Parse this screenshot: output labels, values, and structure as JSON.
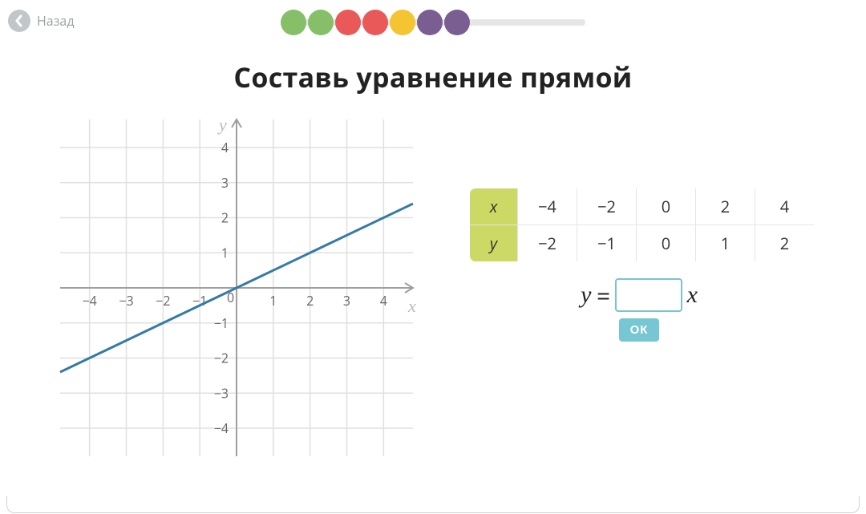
{
  "header": {
    "back_label": "Назад",
    "back_circle_color": "#c1c7c8",
    "progress_dots": [
      "#86bf68",
      "#86bf68",
      "#ea5959",
      "#ea5959",
      "#f4c431",
      "#7a5e91",
      "#7a5e91"
    ]
  },
  "title": "Составь уравнение прямой",
  "chart": {
    "type": "line",
    "x_range": [
      -4.8,
      4.8
    ],
    "y_range": [
      -4.8,
      4.8
    ],
    "x_ticks": [
      -4,
      -3,
      -2,
      -1,
      0,
      1,
      2,
      3,
      4
    ],
    "y_ticks": [
      -4,
      -3,
      -2,
      -1,
      1,
      2,
      3,
      4
    ],
    "x_label": "x",
    "y_label": "y",
    "origin_label": "0",
    "grid_color": "#e0e0e0",
    "axis_color": "#9f9f9f",
    "line_color": "#357aa6",
    "line": {
      "x1": -4.8,
      "y1": -2.4,
      "x2": 4.8,
      "y2": 2.4
    },
    "tick_label_color": "#666666",
    "tick_fontsize": 16,
    "axis_fontsize": 22
  },
  "table": {
    "header_bg": "#cdd965",
    "row_labels": [
      "x",
      "y"
    ],
    "rows": [
      [
        "−4",
        "−2",
        "0",
        "2",
        "4"
      ],
      [
        "−2",
        "−1",
        "0",
        "1",
        "2"
      ]
    ]
  },
  "equation": {
    "lhs": "y",
    "equals": "=",
    "input_value": "",
    "rhs": "x",
    "input_border": "#7bc3cc"
  },
  "ok_label": "ОК",
  "ok_bg": "#76c7d3"
}
